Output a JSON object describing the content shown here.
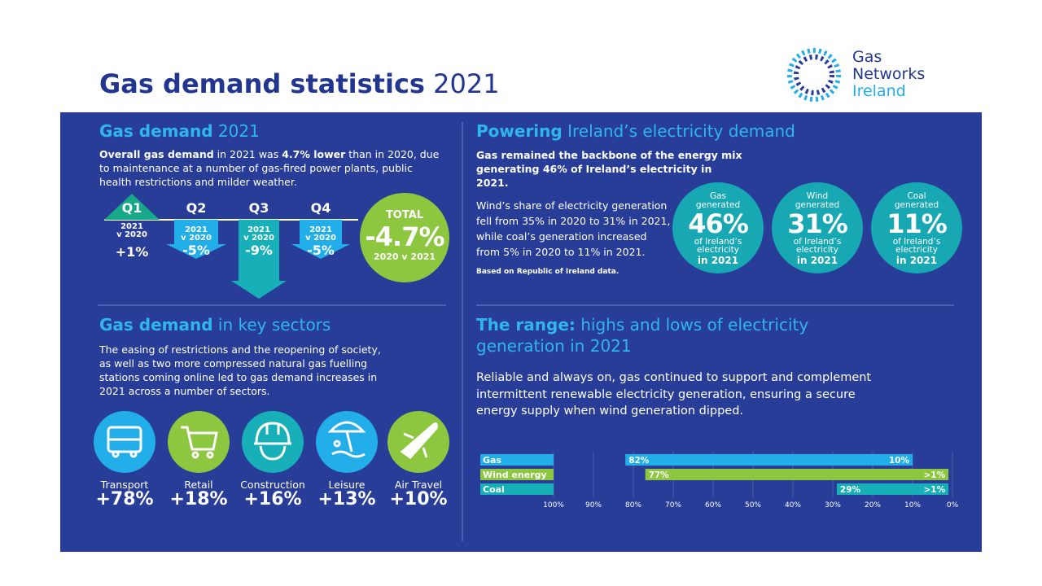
{
  "header": {
    "title": "Gas demand statistics",
    "year": "2021"
  },
  "logo": {
    "lines": [
      "Gas",
      "Networks",
      "Ireland"
    ]
  },
  "demand": {
    "heading_bold": "Gas demand",
    "heading_rest": "2021",
    "intro": [
      "Overall gas demand",
      "in 2021 was",
      "4.7% lower",
      "than in 2020, due to maintenance at a number of gas-fired power plants, public health restrictions and milder weather."
    ],
    "quarters": [
      {
        "label": "Q1",
        "year": "2021",
        "vs": "v 2020",
        "change": "+1%"
      },
      {
        "label": "Q2",
        "year": "2021",
        "vs": "v 2020",
        "change": "-5%"
      },
      {
        "label": "Q3",
        "year": "2021",
        "vs": "v 2020",
        "change": "-9%"
      },
      {
        "label": "Q4",
        "year": "2021",
        "vs": "v 2020",
        "change": "-5%"
      }
    ],
    "total": {
      "label": "TOTAL",
      "value": "-4.7%",
      "sub": "2020 v 2021"
    }
  },
  "sectors": {
    "heading_bold": "Gas demand",
    "heading_rest": "in key sectors",
    "text": "The easing of restrictions and the reopening of society, as well as two more compressed natural gas fuelling stations coming online led to gas demand increases in 2021 across a number of sectors.",
    "items": [
      {
        "name": "Transport",
        "change": "+78%"
      },
      {
        "name": "Retail",
        "change": "+18%"
      },
      {
        "name": "Construction",
        "change": "+16%"
      },
      {
        "name": "Leisure",
        "change": "+13%"
      },
      {
        "name": "Air Travel",
        "change": "+10%"
      }
    ]
  },
  "power": {
    "heading_bold": "Powering",
    "heading_rest": "Ireland’s electricity demand",
    "lead": "Gas remained the backbone of the energy mix generating 46% of Ireland’s electricity in 2021.",
    "body": "Wind’s share of electricity generation fell from 35% in 2020 to 31% in 2021, while coal’s generation increased from 5% in 2020 to 11% in 2021.",
    "note": "Based on Republic of Ireland data.",
    "circles": [
      {
        "source": "Gas",
        "word": "generated",
        "pct": "46%",
        "of": "of Ireland’s",
        "what": "electricity",
        "year": "in 2021"
      },
      {
        "source": "Wind",
        "word": "generated",
        "pct": "31%",
        "of": "of Ireland’s",
        "what": "electricity",
        "year": "in 2021"
      },
      {
        "source": "Coal",
        "word": "generated",
        "pct": "11%",
        "of": "of Ireland’s",
        "what": "electricity",
        "year": "in 2021"
      }
    ]
  },
  "range": {
    "heading_bold": "The range:",
    "heading_rest": "highs and lows of electricity generation in 2021",
    "text": "Reliable and always on, gas continued to support and complement intermittent renewable electricity generation, ensuring a secure energy supply when wind generation dipped."
  },
  "range_chart": {
    "type": "range-bar",
    "xlim": [
      100,
      0
    ],
    "xticks": [
      {
        "value": 100,
        "label": "100%"
      },
      {
        "value": 90,
        "label": "90%"
      },
      {
        "value": 80,
        "label": "80%"
      },
      {
        "value": 70,
        "label": "70%"
      },
      {
        "value": 60,
        "label": "60%"
      },
      {
        "value": 50,
        "label": "50%"
      },
      {
        "value": 40,
        "label": "40%"
      },
      {
        "value": 30,
        "label": "30%"
      },
      {
        "value": 20,
        "label": "20%"
      },
      {
        "value": 10,
        "label": "10%"
      },
      {
        "value": 0,
        "label": "0%"
      }
    ],
    "series": [
      {
        "name": "Gas",
        "color": "#22aee8",
        "high": 82,
        "low": 10,
        "high_label": "82%",
        "low_label": "10%"
      },
      {
        "name": "Wind energy",
        "color": "#8dc63f",
        "high": 77,
        "low": 1,
        "high_label": "77%",
        "low_label": ">1%"
      },
      {
        "name": "Coal",
        "color": "#17b0b8",
        "high": 29,
        "low": 1,
        "high_label": "29%",
        "low_label": ">1%"
      }
    ]
  }
}
